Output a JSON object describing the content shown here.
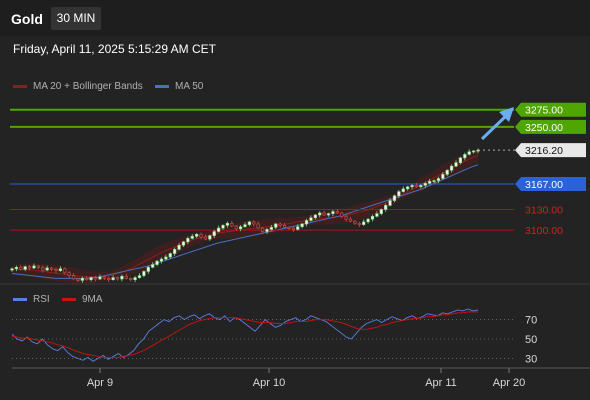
{
  "header": {
    "symbol": "Gold",
    "interval": "30 MIN",
    "datetime": "Friday, April 11, 2025 5:15:29 AM CET"
  },
  "legend": {
    "ma20": "MA 20 + Bollinger Bands",
    "ma50": "MA 50",
    "rsi": "RSI",
    "rsi_ma": "9MA"
  },
  "colors": {
    "resistance": "#4fa600",
    "support": "#b0121b",
    "current": "#2a62d9",
    "bull_candle": "#7fdc7f",
    "bear_candle": "#e04848",
    "ma20": "#8b1f1f",
    "ma50": "#4a70c0",
    "rsi": "#5b7fe0",
    "rsi_ma": "#d01010",
    "arrow": "#6aaef0"
  },
  "chart_data": [
    {
      "type": "candlestick",
      "title": "Gold",
      "y_range": [
        3045,
        3292
      ],
      "x_ticks": [
        "Apr 9",
        "Apr 10",
        "Apr 11",
        "Apr 20"
      ],
      "price_levels": [
        {
          "value": 3275.0,
          "label": "3275.00",
          "kind": "resistance"
        },
        {
          "value": 3250.0,
          "label": "3250.00",
          "kind": "resistance"
        },
        {
          "value": 3216.2,
          "label": "3216.20",
          "kind": "current"
        },
        {
          "value": 3167.0,
          "label": "3167.00",
          "kind": "pivot"
        },
        {
          "value": 3130.0,
          "label": "3130.00",
          "kind": "support"
        },
        {
          "value": 3100.0,
          "label": "3100.00",
          "kind": "support"
        }
      ],
      "closes": [
        3044,
        3046,
        3043,
        3047,
        3045,
        3048,
        3046,
        3042,
        3045,
        3043,
        3041,
        3044,
        3038,
        3034,
        3029,
        3027,
        3030,
        3028,
        3031,
        3029,
        3032,
        3030,
        3028,
        3031,
        3029,
        3033,
        3030,
        3028,
        3031,
        3034,
        3040,
        3046,
        3050,
        3055,
        3058,
        3061,
        3066,
        3072,
        3078,
        3083,
        3088,
        3091,
        3094,
        3090,
        3087,
        3092,
        3098,
        3103,
        3107,
        3110,
        3106,
        3102,
        3105,
        3108,
        3112,
        3109,
        3103,
        3098,
        3101,
        3104,
        3109,
        3107,
        3104,
        3103,
        3101,
        3105,
        3109,
        3114,
        3118,
        3122,
        3125,
        3122,
        3124,
        3127,
        3125,
        3120,
        3116,
        3113,
        3110,
        3108,
        3112,
        3116,
        3120,
        3124,
        3130,
        3136,
        3143,
        3150,
        3156,
        3160,
        3163,
        3165,
        3163,
        3165,
        3168,
        3171,
        3172,
        3175,
        3181,
        3187,
        3193,
        3198,
        3205,
        3210,
        3214,
        3215,
        3216.2
      ],
      "ma20": [
        3043,
        3043,
        3043,
        3043,
        3042,
        3041,
        3040,
        3039,
        3038,
        3037,
        3036,
        3035,
        3034,
        3033,
        3032,
        3032,
        3032,
        3032,
        3033,
        3034,
        3036,
        3038,
        3041,
        3044,
        3048,
        3052,
        3056,
        3060,
        3064,
        3068,
        3071,
        3074,
        3077,
        3080,
        3083,
        3086,
        3088,
        3090,
        3092,
        3094,
        3096,
        3097,
        3098,
        3099,
        3100,
        3101,
        3102,
        3103,
        3104,
        3105,
        3106,
        3107,
        3108,
        3109,
        3110,
        3112,
        3113,
        3114,
        3115,
        3116,
        3117,
        3118,
        3119,
        3120,
        3121,
        3122,
        3124,
        3126,
        3128,
        3130,
        3133,
        3136,
        3139,
        3142,
        3146,
        3150,
        3154,
        3158,
        3162,
        3166,
        3170,
        3174,
        3178,
        3182,
        3186,
        3190,
        3194,
        3198,
        3202,
        3206,
        3208
      ],
      "ma50": [
        3037,
        3036,
        3035,
        3034,
        3033,
        3032,
        3031,
        3030,
        3030,
        3030,
        3030,
        3030,
        3030,
        3031,
        3032,
        3034,
        3036,
        3038,
        3040,
        3042,
        3044,
        3046,
        3048,
        3051,
        3054,
        3057,
        3060,
        3063,
        3066,
        3069,
        3072,
        3075,
        3078,
        3081,
        3083,
        3085,
        3087,
        3089,
        3091,
        3093,
        3095,
        3097,
        3099,
        3101,
        3103,
        3105,
        3107,
        3109,
        3111,
        3113,
        3115,
        3117,
        3119,
        3121,
        3124,
        3127,
        3130,
        3133,
        3136,
        3139,
        3142,
        3145,
        3148,
        3151,
        3154,
        3157,
        3160,
        3164,
        3168,
        3172,
        3176,
        3180,
        3184,
        3188,
        3192,
        3195
      ],
      "annotation": "up-arrow toward 3275.00"
    },
    {
      "type": "line",
      "title": "RSI",
      "y_ticks": [
        70,
        50,
        30
      ],
      "y_range": [
        18,
        82
      ],
      "series": [
        {
          "name": "RSI",
          "values": [
            55,
            50,
            48,
            52,
            47,
            45,
            50,
            44,
            40,
            38,
            42,
            36,
            32,
            30,
            28,
            31,
            27,
            30,
            33,
            29,
            32,
            35,
            31,
            34,
            38,
            45,
            50,
            58,
            62,
            66,
            70,
            68,
            72,
            74,
            70,
            73,
            75,
            71,
            74,
            76,
            72,
            70,
            74,
            68,
            72,
            70,
            66,
            62,
            58,
            64,
            70,
            66,
            62,
            64,
            68,
            70,
            72,
            68,
            70,
            74,
            72,
            70,
            68,
            64,
            60,
            56,
            52,
            50,
            56,
            62,
            66,
            68,
            70,
            67,
            70,
            73,
            71,
            69,
            72,
            74,
            71,
            73,
            76,
            75,
            74,
            77,
            76,
            78,
            80,
            79,
            81,
            79,
            80
          ]
        },
        {
          "name": "9MA",
          "values": [
            53,
            52,
            51,
            51,
            50,
            49,
            48,
            47,
            46,
            44,
            43,
            41,
            39,
            37,
            35,
            34,
            33,
            32,
            31,
            31,
            31,
            31,
            32,
            33,
            34,
            36,
            38,
            41,
            44,
            47,
            50,
            53,
            56,
            59,
            62,
            65,
            67,
            69,
            70,
            71,
            72,
            72,
            72,
            72,
            72,
            71,
            70,
            69,
            68,
            67,
            67,
            67,
            66,
            66,
            66,
            67,
            68,
            68,
            68,
            69,
            70,
            70,
            70,
            69,
            68,
            67,
            65,
            63,
            61,
            60,
            60,
            61,
            62,
            64,
            65,
            67,
            68,
            69,
            70,
            71,
            71,
            72,
            73,
            73,
            74,
            75,
            75,
            76,
            77,
            77,
            78,
            78,
            78
          ]
        }
      ]
    }
  ]
}
